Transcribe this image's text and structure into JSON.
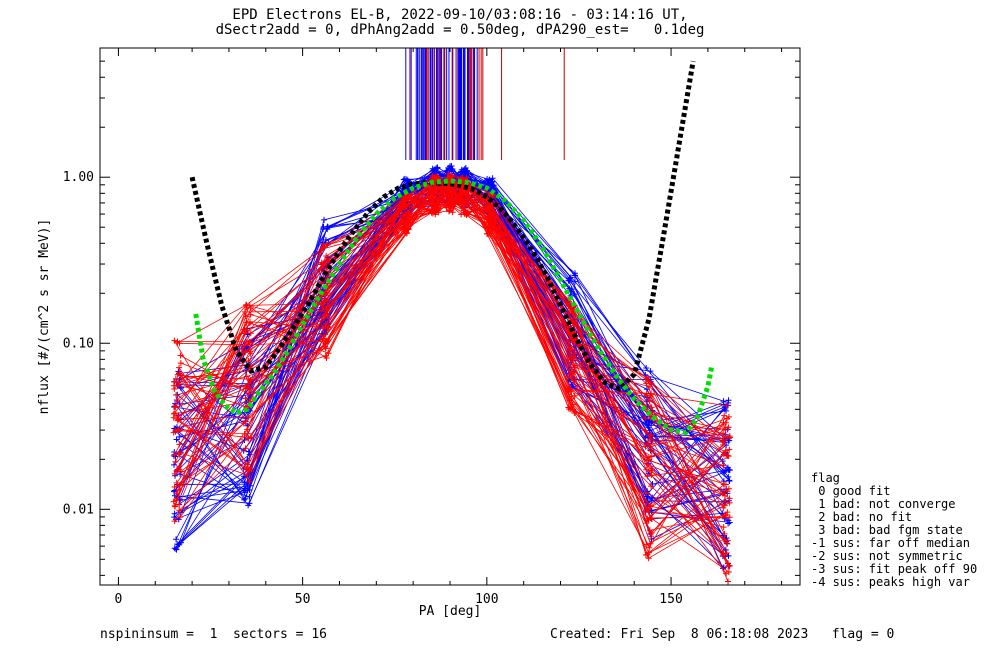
{
  "title_line1": "EPD Electrons EL-B, 2022-09-10/03:08:16 - 03:14:16 UT,",
  "title_line2": "dSectr2add = 0, dPhAng2add = 0.50deg, dPA290_est=   0.1deg",
  "footer_left": "nspininsum =  1  sectors = 16",
  "footer_right": "Created: Fri Sep  8 06:18:08 2023   flag = 0",
  "legend": {
    "title": "flag",
    "items": [
      " 0 good fit",
      " 1 bad: not converge",
      " 2 bad: no fit",
      " 3 bad: bad fgm state",
      "-1 sus: far off median",
      "-2 sus: not symmetric",
      "-3 sus: fit peak off 90",
      "-4 sus: peaks high var"
    ]
  },
  "chart_data": {
    "type": "line",
    "title": "EPD Electrons EL-B, 2022-09-10/03:08:16 - 03:14:16 UT,",
    "subtitle": "dSectr2add = 0, dPhAng2add = 0.50deg, dPA290_est=   0.1deg",
    "xlabel": "PA [deg]",
    "ylabel": "nflux [#/(cm^2 s sr MeV)]",
    "xlim": [
      -5,
      185
    ],
    "ylim": [
      0.0035,
      6
    ],
    "yscale": "log",
    "xticks": [
      0,
      50,
      100,
      150
    ],
    "xtick_labels": [
      "0",
      "50",
      "100",
      "150"
    ],
    "yticks": [
      0.01,
      0.1,
      1.0
    ],
    "ytick_labels": [
      "0.01",
      "0.10",
      "1.00"
    ],
    "grid": false,
    "series": [
      {
        "color": "#000000",
        "style": "dashed",
        "x": [
          20,
          24,
          28,
          32,
          36,
          40,
          44,
          48,
          52,
          56,
          60,
          64,
          68,
          72,
          76,
          80,
          84,
          88,
          92,
          96,
          100,
          104,
          108,
          112,
          116,
          120,
          124,
          128,
          132,
          136,
          140,
          144,
          148,
          152,
          156
        ],
        "y": [
          1.0,
          0.4,
          0.17,
          0.09,
          0.068,
          0.072,
          0.095,
          0.13,
          0.18,
          0.26,
          0.36,
          0.48,
          0.62,
          0.76,
          0.86,
          0.91,
          0.93,
          0.92,
          0.9,
          0.85,
          0.76,
          0.64,
          0.5,
          0.37,
          0.26,
          0.17,
          0.11,
          0.075,
          0.058,
          0.053,
          0.065,
          0.14,
          0.45,
          1.5,
          5.0
        ]
      },
      {
        "color": "#00dd00",
        "style": "dashed",
        "x": [
          21,
          23,
          26,
          29,
          32,
          35,
          38,
          42,
          46,
          50,
          55,
          60,
          65,
          70,
          75,
          80,
          85,
          90,
          95,
          100,
          105,
          110,
          115,
          120,
          125,
          130,
          135,
          140,
          145,
          150,
          154,
          157,
          160,
          161
        ],
        "y": [
          0.15,
          0.08,
          0.052,
          0.042,
          0.038,
          0.04,
          0.05,
          0.065,
          0.09,
          0.13,
          0.2,
          0.3,
          0.44,
          0.6,
          0.75,
          0.86,
          0.93,
          0.95,
          0.93,
          0.86,
          0.72,
          0.55,
          0.38,
          0.24,
          0.15,
          0.095,
          0.064,
          0.046,
          0.036,
          0.03,
          0.029,
          0.035,
          0.055,
          0.072
        ]
      },
      {
        "color": "#0000ff",
        "style": "pa-distribution-fan",
        "x": [
          16,
          35,
          56,
          78,
          86,
          90,
          94,
          101,
          123,
          144,
          165
        ],
        "y": [
          0.02,
          0.035,
          0.25,
          0.75,
          0.88,
          0.9,
          0.87,
          0.75,
          0.12,
          0.022,
          0.014
        ]
      },
      {
        "color": "#ff0000",
        "style": "pa-distribution-fan",
        "x": [
          16,
          35,
          56,
          78,
          86,
          90,
          94,
          101,
          123,
          144,
          165
        ],
        "y": [
          0.03,
          0.05,
          0.18,
          0.6,
          0.78,
          0.8,
          0.76,
          0.6,
          0.08,
          0.018,
          0.012
        ]
      }
    ]
  }
}
